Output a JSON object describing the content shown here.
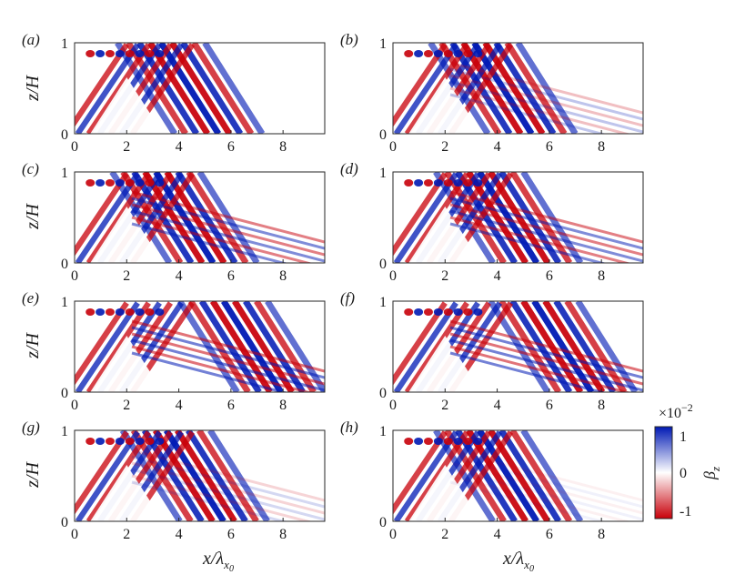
{
  "chart_data": {
    "type": "heatmap",
    "panel_labels": [
      "(a)",
      "(b)",
      "(c)",
      "(d)",
      "(e)",
      "(f)",
      "(g)",
      "(h)"
    ],
    "xlim": [
      0,
      9.6
    ],
    "ylim": [
      0,
      1
    ],
    "xticks": [
      0,
      2,
      4,
      6,
      8
    ],
    "xtick_labels": [
      "0",
      "2",
      "4",
      "6",
      "8"
    ],
    "yticks": [
      0,
      1
    ],
    "ytick_labels": [
      "0",
      "1"
    ],
    "xlabel": "x/λ",
    "xlabel_sub": "x",
    "xlabel_subsub": "0",
    "ylabel": "z/H",
    "colorbar": {
      "label": "β",
      "label_sub": "z",
      "exponent_text": "×10",
      "exponent": "−2",
      "range": [
        -1,
        1
      ],
      "tick_labels": [
        "1",
        "0",
        "-1"
      ],
      "tick_values": [
        1,
        0,
        -1
      ],
      "colors": {
        "positive": "#0019b4",
        "zero": "#ffffff",
        "negative": "#c8000a"
      }
    },
    "panels": [
      {
        "label": "(a)",
        "beam_end_x": 7.2,
        "secondary": 0.0
      },
      {
        "label": "(b)",
        "beam_end_x": 7.0,
        "secondary": 0.45
      },
      {
        "label": "(c)",
        "beam_end_x": 7.0,
        "secondary": 0.9
      },
      {
        "label": "(d)",
        "beam_end_x": 7.2,
        "secondary": 0.9
      },
      {
        "label": "(e)",
        "beam_end_x": 9.6,
        "secondary": 1.0
      },
      {
        "label": "(f)",
        "beam_end_x": 9.3,
        "secondary": 1.0
      },
      {
        "label": "(g)",
        "beam_end_x": 7.4,
        "secondary": 0.3
      },
      {
        "label": "(h)",
        "beam_end_x": 7.2,
        "secondary": 0.1
      }
    ]
  }
}
